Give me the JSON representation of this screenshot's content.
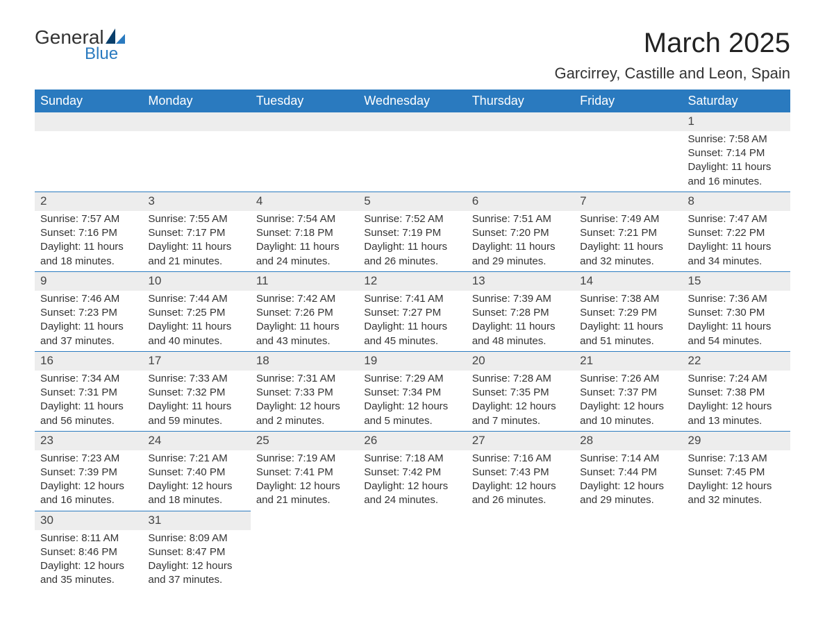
{
  "logo": {
    "text1": "General",
    "text2": "Blue"
  },
  "title": "March 2025",
  "subtitle": "Garcirrey, Castille and Leon, Spain",
  "colors": {
    "header_bg": "#2a7abf",
    "header_text": "#ffffff",
    "daynum_bg": "#ededed",
    "border": "#2a7abf",
    "body_text": "#333333",
    "logo_blue": "#2a7abf"
  },
  "weekday_headers": [
    "Sunday",
    "Monday",
    "Tuesday",
    "Wednesday",
    "Thursday",
    "Friday",
    "Saturday"
  ],
  "weeks": [
    [
      null,
      null,
      null,
      null,
      null,
      null,
      {
        "n": "1",
        "sunrise": "Sunrise: 7:58 AM",
        "sunset": "Sunset: 7:14 PM",
        "daylight": "Daylight: 11 hours and 16 minutes."
      }
    ],
    [
      {
        "n": "2",
        "sunrise": "Sunrise: 7:57 AM",
        "sunset": "Sunset: 7:16 PM",
        "daylight": "Daylight: 11 hours and 18 minutes."
      },
      {
        "n": "3",
        "sunrise": "Sunrise: 7:55 AM",
        "sunset": "Sunset: 7:17 PM",
        "daylight": "Daylight: 11 hours and 21 minutes."
      },
      {
        "n": "4",
        "sunrise": "Sunrise: 7:54 AM",
        "sunset": "Sunset: 7:18 PM",
        "daylight": "Daylight: 11 hours and 24 minutes."
      },
      {
        "n": "5",
        "sunrise": "Sunrise: 7:52 AM",
        "sunset": "Sunset: 7:19 PM",
        "daylight": "Daylight: 11 hours and 26 minutes."
      },
      {
        "n": "6",
        "sunrise": "Sunrise: 7:51 AM",
        "sunset": "Sunset: 7:20 PM",
        "daylight": "Daylight: 11 hours and 29 minutes."
      },
      {
        "n": "7",
        "sunrise": "Sunrise: 7:49 AM",
        "sunset": "Sunset: 7:21 PM",
        "daylight": "Daylight: 11 hours and 32 minutes."
      },
      {
        "n": "8",
        "sunrise": "Sunrise: 7:47 AM",
        "sunset": "Sunset: 7:22 PM",
        "daylight": "Daylight: 11 hours and 34 minutes."
      }
    ],
    [
      {
        "n": "9",
        "sunrise": "Sunrise: 7:46 AM",
        "sunset": "Sunset: 7:23 PM",
        "daylight": "Daylight: 11 hours and 37 minutes."
      },
      {
        "n": "10",
        "sunrise": "Sunrise: 7:44 AM",
        "sunset": "Sunset: 7:25 PM",
        "daylight": "Daylight: 11 hours and 40 minutes."
      },
      {
        "n": "11",
        "sunrise": "Sunrise: 7:42 AM",
        "sunset": "Sunset: 7:26 PM",
        "daylight": "Daylight: 11 hours and 43 minutes."
      },
      {
        "n": "12",
        "sunrise": "Sunrise: 7:41 AM",
        "sunset": "Sunset: 7:27 PM",
        "daylight": "Daylight: 11 hours and 45 minutes."
      },
      {
        "n": "13",
        "sunrise": "Sunrise: 7:39 AM",
        "sunset": "Sunset: 7:28 PM",
        "daylight": "Daylight: 11 hours and 48 minutes."
      },
      {
        "n": "14",
        "sunrise": "Sunrise: 7:38 AM",
        "sunset": "Sunset: 7:29 PM",
        "daylight": "Daylight: 11 hours and 51 minutes."
      },
      {
        "n": "15",
        "sunrise": "Sunrise: 7:36 AM",
        "sunset": "Sunset: 7:30 PM",
        "daylight": "Daylight: 11 hours and 54 minutes."
      }
    ],
    [
      {
        "n": "16",
        "sunrise": "Sunrise: 7:34 AM",
        "sunset": "Sunset: 7:31 PM",
        "daylight": "Daylight: 11 hours and 56 minutes."
      },
      {
        "n": "17",
        "sunrise": "Sunrise: 7:33 AM",
        "sunset": "Sunset: 7:32 PM",
        "daylight": "Daylight: 11 hours and 59 minutes."
      },
      {
        "n": "18",
        "sunrise": "Sunrise: 7:31 AM",
        "sunset": "Sunset: 7:33 PM",
        "daylight": "Daylight: 12 hours and 2 minutes."
      },
      {
        "n": "19",
        "sunrise": "Sunrise: 7:29 AM",
        "sunset": "Sunset: 7:34 PM",
        "daylight": "Daylight: 12 hours and 5 minutes."
      },
      {
        "n": "20",
        "sunrise": "Sunrise: 7:28 AM",
        "sunset": "Sunset: 7:35 PM",
        "daylight": "Daylight: 12 hours and 7 minutes."
      },
      {
        "n": "21",
        "sunrise": "Sunrise: 7:26 AM",
        "sunset": "Sunset: 7:37 PM",
        "daylight": "Daylight: 12 hours and 10 minutes."
      },
      {
        "n": "22",
        "sunrise": "Sunrise: 7:24 AM",
        "sunset": "Sunset: 7:38 PM",
        "daylight": "Daylight: 12 hours and 13 minutes."
      }
    ],
    [
      {
        "n": "23",
        "sunrise": "Sunrise: 7:23 AM",
        "sunset": "Sunset: 7:39 PM",
        "daylight": "Daylight: 12 hours and 16 minutes."
      },
      {
        "n": "24",
        "sunrise": "Sunrise: 7:21 AM",
        "sunset": "Sunset: 7:40 PM",
        "daylight": "Daylight: 12 hours and 18 minutes."
      },
      {
        "n": "25",
        "sunrise": "Sunrise: 7:19 AM",
        "sunset": "Sunset: 7:41 PM",
        "daylight": "Daylight: 12 hours and 21 minutes."
      },
      {
        "n": "26",
        "sunrise": "Sunrise: 7:18 AM",
        "sunset": "Sunset: 7:42 PM",
        "daylight": "Daylight: 12 hours and 24 minutes."
      },
      {
        "n": "27",
        "sunrise": "Sunrise: 7:16 AM",
        "sunset": "Sunset: 7:43 PM",
        "daylight": "Daylight: 12 hours and 26 minutes."
      },
      {
        "n": "28",
        "sunrise": "Sunrise: 7:14 AM",
        "sunset": "Sunset: 7:44 PM",
        "daylight": "Daylight: 12 hours and 29 minutes."
      },
      {
        "n": "29",
        "sunrise": "Sunrise: 7:13 AM",
        "sunset": "Sunset: 7:45 PM",
        "daylight": "Daylight: 12 hours and 32 minutes."
      }
    ],
    [
      {
        "n": "30",
        "sunrise": "Sunrise: 8:11 AM",
        "sunset": "Sunset: 8:46 PM",
        "daylight": "Daylight: 12 hours and 35 minutes."
      },
      {
        "n": "31",
        "sunrise": "Sunrise: 8:09 AM",
        "sunset": "Sunset: 8:47 PM",
        "daylight": "Daylight: 12 hours and 37 minutes."
      },
      null,
      null,
      null,
      null,
      null
    ]
  ]
}
